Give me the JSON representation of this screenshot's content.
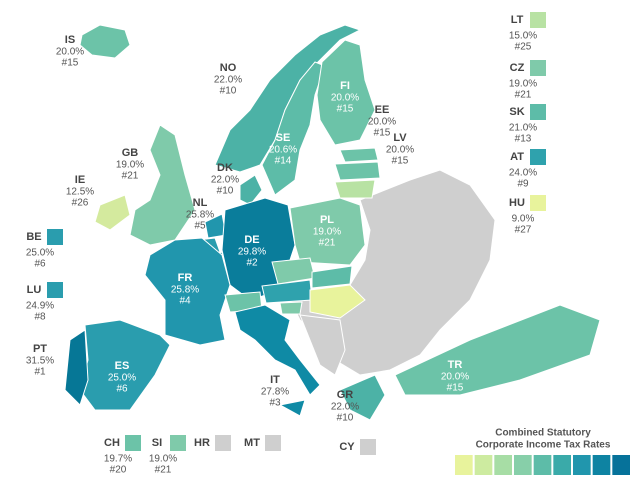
{
  "labels": [
    {
      "code": "IS",
      "rate": "20.0%",
      "rank": "#15",
      "color": "#6cc3a8"
    },
    {
      "code": "NO",
      "rate": "22.0%",
      "rank": "#10",
      "color": "#4cb2a6"
    },
    {
      "code": "FI",
      "rate": "20.0%",
      "rank": "#15",
      "color": "#6cc3a8"
    },
    {
      "code": "EE",
      "rate": "20.0%",
      "rank": "#15",
      "color": "#6cc3a8"
    },
    {
      "code": "LV",
      "rate": "20.0%",
      "rank": "#15",
      "color": "#6cc3a8"
    },
    {
      "code": "SE",
      "rate": "20.6%",
      "rank": "#14",
      "color": "#5dbca8"
    },
    {
      "code": "GB",
      "rate": "19.0%",
      "rank": "#21",
      "color": "#7fcaaa"
    },
    {
      "code": "DK",
      "rate": "22.0%",
      "rank": "#10",
      "color": "#4cb2a6"
    },
    {
      "code": "IE",
      "rate": "12.5%",
      "rank": "#26",
      "color": "#d4ea9e"
    },
    {
      "code": "NL",
      "rate": "25.8%",
      "rank": "#5",
      "color": "#2196ad"
    },
    {
      "code": "PL",
      "rate": "19.0%",
      "rank": "#21",
      "color": "#7fcaaa"
    },
    {
      "code": "DE",
      "rate": "29.8%",
      "rank": "#2",
      "color": "#0a7d9b"
    },
    {
      "code": "FR",
      "rate": "25.8%",
      "rank": "#4",
      "color": "#2196ad"
    },
    {
      "code": "PT",
      "rate": "31.5%",
      "rank": "#1",
      "color": "#067796"
    },
    {
      "code": "ES",
      "rate": "25.0%",
      "rank": "#6",
      "color": "#2a9dae"
    },
    {
      "code": "IT",
      "rate": "27.8%",
      "rank": "#3",
      "color": "#0f8aa5"
    },
    {
      "code": "GR",
      "rate": "22.0%",
      "rank": "#10",
      "color": "#4cb2a6"
    },
    {
      "code": "TR",
      "rate": "20.0%",
      "rank": "#15",
      "color": "#6cc3a8"
    },
    {
      "code": "BE",
      "rate": "25.0%",
      "rank": "#6",
      "color": "#2a9dae"
    },
    {
      "code": "LU",
      "rate": "24.9%",
      "rank": "#8",
      "color": "#2a9dae"
    },
    {
      "code": "LT",
      "rate": "15.0%",
      "rank": "#25",
      "color": "#b8e2a3"
    },
    {
      "code": "CZ",
      "rate": "19.0%",
      "rank": "#21",
      "color": "#7fcaaa"
    },
    {
      "code": "SK",
      "rate": "21.0%",
      "rank": "#13",
      "color": "#5dbca8"
    },
    {
      "code": "AT",
      "rate": "24.0%",
      "rank": "#9",
      "color": "#2fa2ad"
    },
    {
      "code": "HU",
      "rate": "9.0%",
      "rank": "#27",
      "color": "#e8f39c"
    },
    {
      "code": "CH",
      "rate": "19.7%",
      "rank": "#20",
      "color": "#6cc3a8"
    },
    {
      "code": "SI",
      "rate": "19.0%",
      "rank": "#21",
      "color": "#7fcaaa"
    },
    {
      "code": "HR",
      "color": "#cfcfcf"
    },
    {
      "code": "MT",
      "color": "#cfcfcf"
    },
    {
      "code": "CY",
      "color": "#cfcfcf"
    }
  ],
  "legend": {
    "title_lines": [
      "Combined Statutory",
      "Corporate Income Tax Rates"
    ],
    "colors": [
      "#e8f39c",
      "#cdeba0",
      "#a7dda5",
      "#87cfa9",
      "#5dbca8",
      "#3aaaa9",
      "#2196ad",
      "#0e83a2",
      "#06729a"
    ]
  }
}
